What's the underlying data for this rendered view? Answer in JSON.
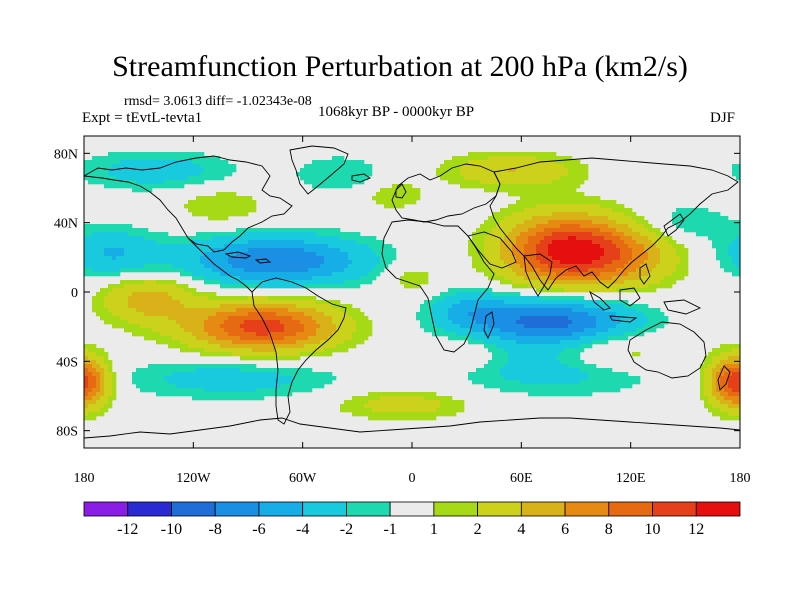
{
  "title": "Streamfunction Perturbation at 200 hPa (km2/s)",
  "rmsd_text": "rmsd= 3.0613  diff= -1.02343e-08",
  "expt_text": "Expt = tEvtL-tevta1",
  "period_text": "1068kyr BP - 0000kyr BP",
  "season_text": "DJF",
  "chart_data": {
    "type": "contour_map",
    "variable": "Streamfunction Perturbation at 200 hPa",
    "units": "km2/s",
    "x_ticks": [
      "180",
      "120W",
      "60W",
      "0",
      "60E",
      "120E",
      "180"
    ],
    "y_ticks": [
      "80N",
      "40N",
      "0",
      "40S",
      "80S"
    ],
    "lon_range": [
      -180,
      180
    ],
    "lat_range": [
      -90,
      90
    ],
    "colorbar_labels": [
      "-12",
      "-10",
      "-8",
      "-6",
      "-4",
      "-2",
      "-1",
      "1",
      "2",
      "4",
      "6",
      "8",
      "10",
      "12"
    ],
    "colorbar_colors": [
      "#8a1ee6",
      "#2a2ad2",
      "#1f6ed8",
      "#1a8fe3",
      "#17aee8",
      "#19c9dd",
      "#1ed9b0",
      "#ebebeb",
      "#a6d916",
      "#ccd21c",
      "#d9b21a",
      "#e68a14",
      "#e66a12",
      "#e6401a",
      "#e60f0f"
    ],
    "anomalies": [
      {
        "lon": 85,
        "lat": 24,
        "amp": 13,
        "slon": 24,
        "slat": 14
      },
      {
        "lon": 120,
        "lat": 20,
        "amp": 4,
        "slon": 20,
        "slat": 12
      },
      {
        "lon": -82,
        "lat": -20,
        "amp": 11,
        "slon": 28,
        "slat": 10
      },
      {
        "lon": -145,
        "lat": -4,
        "amp": 5,
        "slon": 18,
        "slat": 10
      },
      {
        "lon": -75,
        "lat": 18,
        "amp": -8,
        "slon": 35,
        "slat": 10
      },
      {
        "lon": 75,
        "lat": -17,
        "amp": -9,
        "slon": 32,
        "slat": 10
      },
      {
        "lon": -165,
        "lat": 22,
        "amp": -4,
        "slon": 18,
        "slat": 10
      },
      {
        "lon": 30,
        "lat": -10,
        "amp": -3,
        "slon": 14,
        "slat": 8
      },
      {
        "lon": 80,
        "lat": -45,
        "amp": -3,
        "slon": 40,
        "slat": 10
      },
      {
        "lon": -100,
        "lat": -50,
        "amp": -3,
        "slon": 40,
        "slat": 8
      },
      {
        "lon": -140,
        "lat": 70,
        "amp": -3,
        "slon": 30,
        "slat": 8
      },
      {
        "lon": -40,
        "lat": 68,
        "amp": -2,
        "slon": 18,
        "slat": 8
      },
      {
        "lon": 55,
        "lat": 70,
        "amp": 4,
        "slon": 25,
        "slat": 7
      },
      {
        "lon": -105,
        "lat": 50,
        "amp": 2,
        "slon": 18,
        "slat": 8
      },
      {
        "lon": -10,
        "lat": 56,
        "amp": 2,
        "slon": 12,
        "slat": 6
      },
      {
        "lon": 0,
        "lat": 8,
        "amp": 2,
        "slon": 10,
        "slat": 7
      },
      {
        "lon": 30,
        "lat": -35,
        "amp": 2,
        "slon": 14,
        "slat": 7
      },
      {
        "lon": -5,
        "lat": -65,
        "amp": 3,
        "slon": 25,
        "slat": 6
      },
      {
        "lon": 110,
        "lat": -35,
        "amp": 3,
        "slon": 25,
        "slat": 8
      },
      {
        "lon": 178,
        "lat": -52,
        "amp": 12,
        "slon": 10,
        "slat": 10
      },
      {
        "lon": 150,
        "lat": 40,
        "amp": -2,
        "slon": 18,
        "slat": 8
      }
    ]
  }
}
